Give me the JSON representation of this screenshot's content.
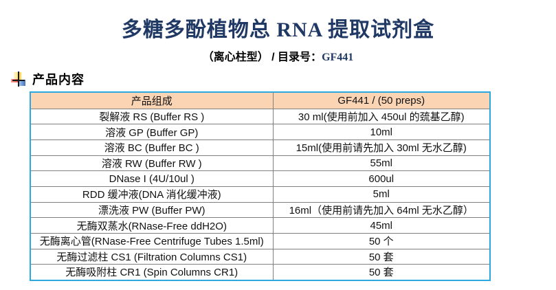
{
  "title": "多糖多酚植物总 RNA 提取试剂盒",
  "subtitle": {
    "type_and_catalog_label": "（离心柱型） / 目录号：",
    "catalog_number": "GF441"
  },
  "section": {
    "heading": "产品内容",
    "bullet_icon": "colored-squares-bullet-icon"
  },
  "table": {
    "headers": [
      "产品组成",
      "GF441 / (50 preps)"
    ],
    "rows": [
      {
        "component": "裂解液 RS (Buffer RS )",
        "amount": "30 ml(使用前加入 450ul 的巯基乙醇)"
      },
      {
        "component": "溶液 GP (Buffer GP)",
        "amount": "10ml"
      },
      {
        "component": "溶液 BC (Buffer BC )",
        "amount": "15ml(使用前请先加入 30ml 无水乙醇)"
      },
      {
        "component": "溶液 RW (Buffer RW )",
        "amount": "55ml"
      },
      {
        "component": "DNase I (4U/10ul )",
        "amount": "600ul"
      },
      {
        "component": "RDD 缓冲液(DNA 消化缓冲液)",
        "amount": "5ml"
      },
      {
        "component": "漂洗液 PW (Buffer PW)",
        "amount": "16ml（使用前请先加入 64ml 无水乙醇）"
      },
      {
        "component": "无酶双蒸水(RNase-Free ddH2O)",
        "amount": "45ml"
      },
      {
        "component": "无酶离心管(RNase-Free Centrifuge Tubes 1.5ml)",
        "amount": "50 个"
      },
      {
        "component": "无酶过滤柱 CS1 (Filtration Columns CS1)",
        "amount": "50 套"
      },
      {
        "component": "无酶吸附柱 CR1 (Spin Columns CR1)",
        "amount": "50 套"
      }
    ]
  },
  "colors": {
    "title_navy": "#1F3864",
    "table_outer_border": "#29A9E0",
    "table_grid_line": "#808080",
    "table_header_bg": "#FBD4B4"
  }
}
